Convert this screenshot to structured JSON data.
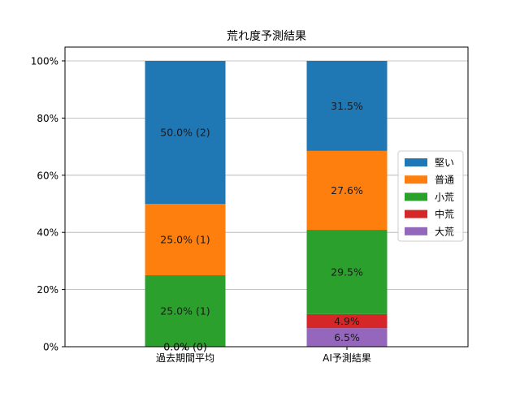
{
  "chart_data": {
    "type": "bar",
    "stacked": true,
    "title": "荒れ度予測結果",
    "xlabel": "",
    "ylabel": "",
    "ylim": [
      0,
      100
    ],
    "yticks": [
      "0%",
      "20%",
      "40%",
      "60%",
      "80%",
      "100%"
    ],
    "categories": [
      "過去期間平均",
      "AI予測結果"
    ],
    "series": [
      {
        "name": "大荒",
        "color": "#9467bd",
        "values": [
          0.0,
          6.5
        ],
        "labels": [
          "0.0% (0)",
          "6.5%"
        ]
      },
      {
        "name": "中荒",
        "color": "#d62728",
        "values": [
          0.0,
          4.9
        ],
        "labels": [
          "0.0% (0)",
          "4.9%"
        ]
      },
      {
        "name": "小荒",
        "color": "#2ca02c",
        "values": [
          25.0,
          29.5
        ],
        "labels": [
          "25.0% (1)",
          "29.5%"
        ]
      },
      {
        "name": "普通",
        "color": "#ff7f0e",
        "values": [
          25.0,
          27.6
        ],
        "labels": [
          "25.0% (1)",
          "27.6%"
        ]
      },
      {
        "name": "堅い",
        "color": "#1f77b4",
        "values": [
          50.0,
          31.5
        ],
        "labels": [
          "50.0% (2)",
          "31.5%"
        ]
      }
    ],
    "legend": {
      "placement": "center-right",
      "order": [
        "堅い",
        "普通",
        "小荒",
        "中荒",
        "大荒"
      ]
    },
    "grid": {
      "y": true,
      "x": false
    }
  }
}
